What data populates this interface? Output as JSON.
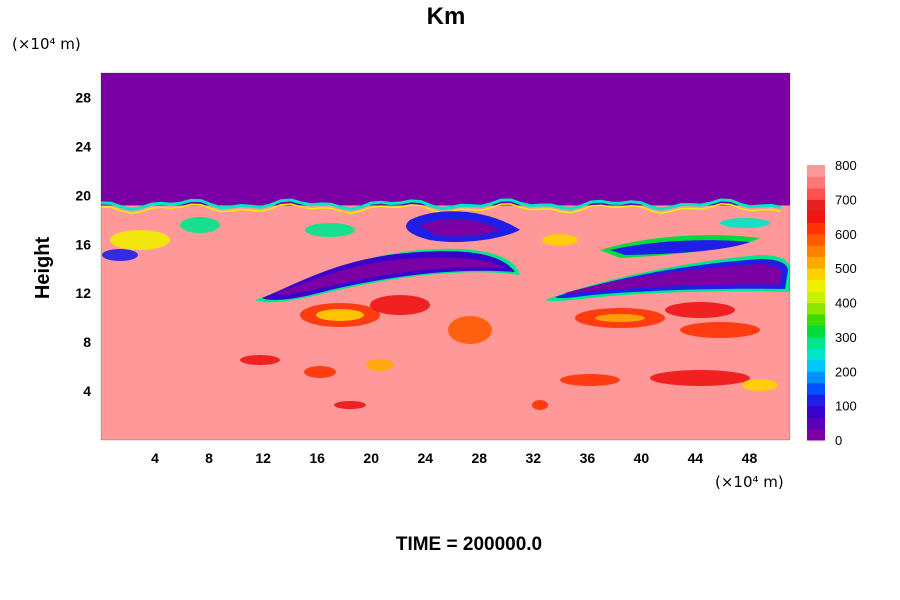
{
  "chart_data": {
    "type": "heatmap",
    "title": "Km",
    "ylabel": "Height",
    "x_unit": "(×10⁴ m)",
    "y_unit": "(×10⁴ m)",
    "xlim": [
      0,
      51
    ],
    "ylim": [
      0,
      30
    ],
    "xticks": [
      "4",
      "8",
      "12",
      "16",
      "20",
      "24",
      "28",
      "32",
      "36",
      "40",
      "44",
      "48"
    ],
    "yticks": [
      "4",
      "8",
      "12",
      "16",
      "20",
      "24",
      "28"
    ],
    "colorbar": {
      "min": 0,
      "max": 800,
      "ticks": [
        "0",
        "100",
        "200",
        "300",
        "400",
        "500",
        "600",
        "700",
        "800"
      ],
      "colors": [
        "#7a00a6",
        "#5a00b8",
        "#3a00cc",
        "#1e1ee6",
        "#0050ff",
        "#0090ff",
        "#00c8ff",
        "#00e6c8",
        "#00e68c",
        "#00dc3c",
        "#3cdc00",
        "#8ce600",
        "#c8f000",
        "#f0f000",
        "#ffd200",
        "#ffaa00",
        "#ff8200",
        "#ff5a00",
        "#ff3200",
        "#f01414",
        "#e61e1e",
        "#ff5050",
        "#ff7878",
        "#ff9898"
      ]
    },
    "field_description_regions": {
      "upper_layer_value": 0,
      "upper_layer_min_height": 19.5,
      "background_value": 800
    },
    "grid": false,
    "legend": "colorbar-right"
  },
  "footer": {
    "time_label": "TIME = 200000.0"
  }
}
